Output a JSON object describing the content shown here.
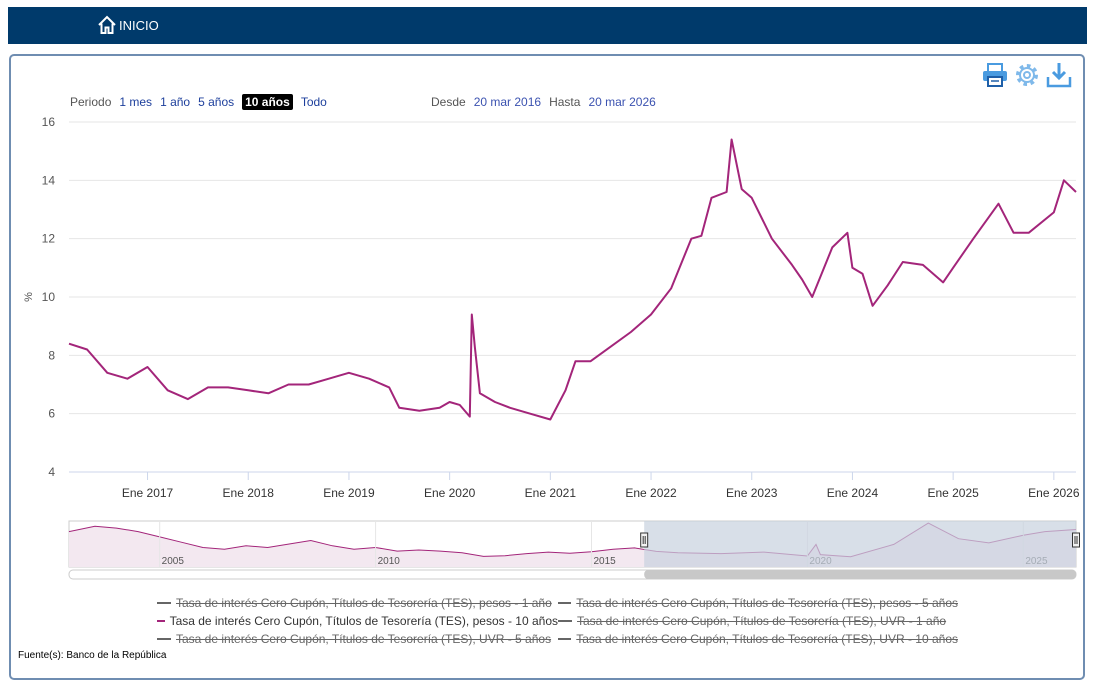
{
  "nav": {
    "home_label": "INICIO"
  },
  "toolbar": {
    "print_icon": "print-icon",
    "settings_icon": "gear-icon",
    "download_icon": "download-icon"
  },
  "periods": {
    "label": "Periodo",
    "options": [
      "1 mes",
      "1 año",
      "5 años",
      "10 años",
      "Todo"
    ],
    "active": "10 años"
  },
  "range": {
    "from_label": "Desde",
    "from_value": "20 mar 2016",
    "to_label": "Hasta",
    "to_value": "20 mar 2026"
  },
  "colors": {
    "series": "#a3257a",
    "header": "#003a6b",
    "navigator_fill": "#f3e8f0",
    "navigator_mask": "#c7d2de"
  },
  "chart_data": {
    "type": "line",
    "title": "",
    "xlabel": "",
    "ylabel": "%",
    "ylim": [
      4,
      16
    ],
    "yticks": [
      4,
      6,
      8,
      10,
      12,
      14,
      16
    ],
    "xlim": [
      2016.22,
      2026.22
    ],
    "xticks": [
      {
        "label": "Ene 2017",
        "x": 2017.0
      },
      {
        "label": "Ene 2018",
        "x": 2018.0
      },
      {
        "label": "Ene 2019",
        "x": 2019.0
      },
      {
        "label": "Ene 2020",
        "x": 2020.0
      },
      {
        "label": "Ene 2021",
        "x": 2021.0
      },
      {
        "label": "Ene 2022",
        "x": 2022.0
      },
      {
        "label": "Ene 2023",
        "x": 2023.0
      },
      {
        "label": "Ene 2024",
        "x": 2024.0
      },
      {
        "label": "Ene 2025",
        "x": 2025.0
      },
      {
        "label": "Ene 2026",
        "x": 2026.0
      }
    ],
    "series": [
      {
        "name": "Tasa de interés Cero Cupón, Títulos de Tesorería (TES), pesos - 10 años",
        "x": [
          2016.22,
          2016.4,
          2016.6,
          2016.8,
          2017.0,
          2017.2,
          2017.4,
          2017.6,
          2017.8,
          2018.0,
          2018.2,
          2018.4,
          2018.6,
          2018.8,
          2019.0,
          2019.2,
          2019.4,
          2019.5,
          2019.7,
          2019.9,
          2020.0,
          2020.1,
          2020.2,
          2020.22,
          2020.25,
          2020.3,
          2020.45,
          2020.6,
          2020.8,
          2021.0,
          2021.15,
          2021.25,
          2021.4,
          2021.6,
          2021.8,
          2022.0,
          2022.2,
          2022.4,
          2022.5,
          2022.6,
          2022.75,
          2022.8,
          2022.9,
          2023.0,
          2023.2,
          2023.4,
          2023.5,
          2023.6,
          2023.8,
          2023.95,
          2024.0,
          2024.1,
          2024.2,
          2024.35,
          2024.5,
          2024.7,
          2024.9,
          2025.0,
          2025.2,
          2025.45,
          2025.6,
          2025.75,
          2026.0,
          2026.1,
          2026.22
        ],
        "values": [
          8.4,
          8.2,
          7.4,
          7.2,
          7.6,
          6.8,
          6.5,
          6.9,
          6.9,
          6.8,
          6.7,
          7.0,
          7.0,
          7.2,
          7.4,
          7.2,
          6.9,
          6.2,
          6.1,
          6.2,
          6.4,
          6.3,
          5.9,
          9.4,
          8.3,
          6.7,
          6.4,
          6.2,
          6.0,
          5.8,
          6.8,
          7.8,
          7.8,
          8.3,
          8.8,
          9.4,
          10.3,
          12.0,
          12.1,
          13.4,
          13.6,
          15.4,
          13.7,
          13.4,
          12.0,
          11.1,
          10.6,
          10.0,
          11.7,
          12.2,
          11.0,
          10.8,
          9.7,
          10.4,
          11.2,
          11.1,
          10.5,
          11.0,
          12.0,
          13.2,
          12.2,
          12.2,
          12.9,
          14.0,
          13.6
        ]
      }
    ],
    "navigator": {
      "xticks": [
        {
          "label": "2005",
          "x": 2005.0
        },
        {
          "label": "2010",
          "x": 2010.0
        },
        {
          "label": "2015",
          "x": 2015.0
        },
        {
          "label": "2020",
          "x": 2020.0
        },
        {
          "label": "2025",
          "x": 2025.0
        }
      ],
      "xlim": [
        2002.9,
        2026.22
      ],
      "x": [
        2002.9,
        2003.5,
        2004.0,
        2004.5,
        2005.0,
        2005.5,
        2006.0,
        2006.5,
        2007.0,
        2007.5,
        2008.0,
        2008.5,
        2009.0,
        2009.5,
        2010.0,
        2010.5,
        2011.0,
        2011.5,
        2012.0,
        2012.5,
        2013.0,
        2013.5,
        2014.0,
        2014.5,
        2015.0,
        2015.5,
        2016.0,
        2016.5,
        2017.0,
        2018.0,
        2019.0,
        2020.0,
        2020.2,
        2020.3,
        2021.0,
        2022.0,
        2022.8,
        2023.5,
        2024.2,
        2025.0,
        2025.5,
        2026.22
      ],
      "values": [
        13.0,
        14.5,
        14.0,
        13.0,
        11.5,
        10.0,
        8.5,
        8.0,
        9.0,
        8.5,
        9.5,
        10.5,
        9.0,
        8.0,
        8.5,
        7.5,
        7.8,
        7.5,
        7.0,
        6.0,
        6.2,
        6.8,
        7.2,
        6.9,
        7.3,
        8.0,
        8.4,
        7.4,
        7.0,
        6.8,
        7.2,
        6.1,
        9.4,
        6.5,
        5.9,
        9.4,
        15.4,
        11.0,
        9.8,
        12.0,
        13.0,
        13.6
      ],
      "ylim": [
        3,
        16
      ],
      "selected": [
        2016.22,
        2026.22
      ]
    }
  },
  "legend": {
    "items": [
      {
        "label": "Tasa de interés Cero Cupón, Títulos de Tesorería (TES), pesos - 1 año",
        "visible": false
      },
      {
        "label": "Tasa de interés Cero Cupón, Títulos de Tesorería (TES), pesos - 5 años",
        "visible": false
      },
      {
        "label": "Tasa de interés Cero Cupón, Títulos de Tesorería (TES), pesos - 10 años",
        "visible": true
      },
      {
        "label": "Tasa de interés Cero Cupón, Títulos de Tesorería (TES), UVR - 1 año",
        "visible": false
      },
      {
        "label": "Tasa de interés Cero Cupón, Títulos de Tesorería (TES), UVR - 5 años",
        "visible": false
      },
      {
        "label": "Tasa de interés Cero Cupón, Títulos de Tesorería (TES), UVR - 10 años",
        "visible": false
      }
    ]
  },
  "source": "Fuente(s): Banco de la República"
}
